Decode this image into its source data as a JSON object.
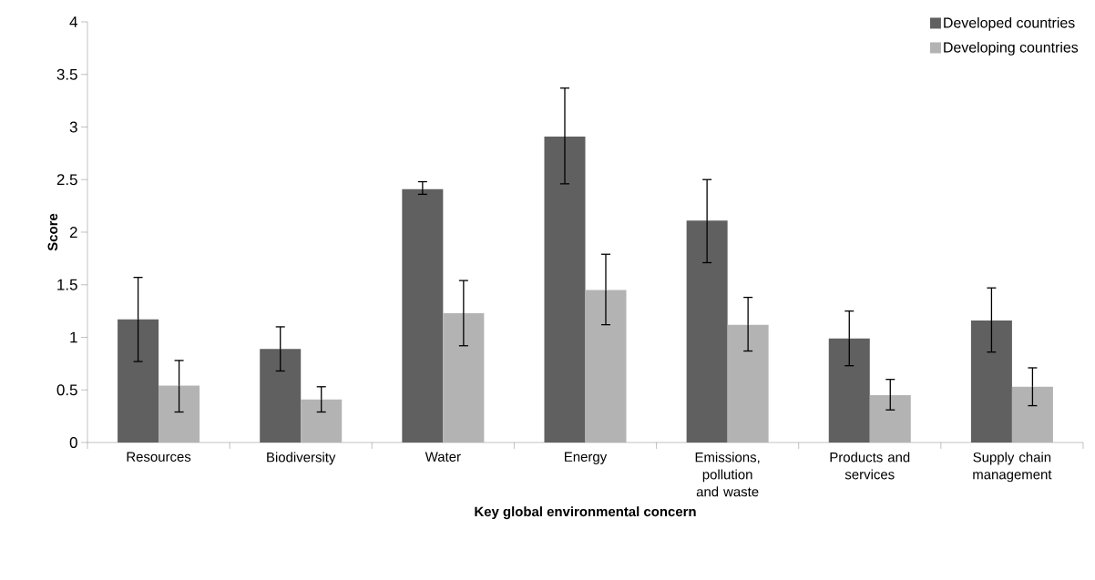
{
  "chart_data": {
    "type": "bar",
    "xlabel": "Key global environmental concern",
    "ylabel": "Score",
    "categories": [
      "Resources",
      "Biodiversity",
      "Water",
      "Energy",
      "Emissions, pollution and waste",
      "Products and services",
      "Supply chain management"
    ],
    "series": [
      {
        "name": "Developed countries",
        "color": "#606060",
        "values": [
          1.17,
          0.89,
          2.41,
          2.91,
          2.11,
          0.99,
          1.16
        ],
        "errors": [
          [
            0.77,
            1.57
          ],
          [
            0.68,
            1.1
          ],
          [
            2.36,
            2.48
          ],
          [
            2.46,
            3.37
          ],
          [
            1.71,
            2.5
          ],
          [
            0.73,
            1.25
          ],
          [
            0.86,
            1.47
          ]
        ]
      },
      {
        "name": "Developing countries",
        "color": "#b3b3b3",
        "values": [
          0.54,
          0.41,
          1.23,
          1.45,
          1.12,
          0.45,
          0.53
        ],
        "errors": [
          [
            0.29,
            0.78
          ],
          [
            0.29,
            0.53
          ],
          [
            0.92,
            1.54
          ],
          [
            1.12,
            1.79
          ],
          [
            0.87,
            1.38
          ],
          [
            0.31,
            0.6
          ],
          [
            0.35,
            0.71
          ]
        ]
      }
    ],
    "ylim": [
      0,
      4
    ],
    "yticks": [
      0,
      0.5,
      1,
      1.5,
      2,
      2.5,
      3,
      3.5,
      4
    ],
    "legend": "top right"
  }
}
